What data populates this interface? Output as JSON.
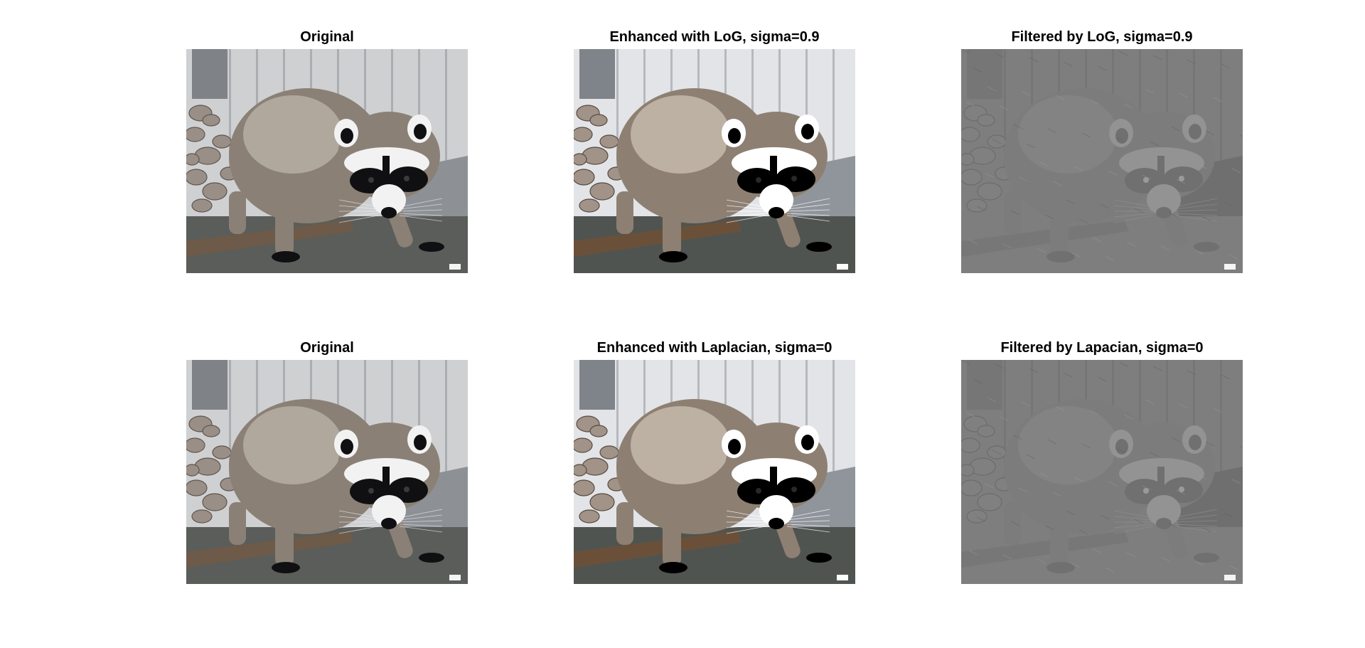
{
  "figure": {
    "panels": [
      {
        "title": "Original",
        "kind": "color"
      },
      {
        "title": "Enhanced with LoG, sigma=0.9",
        "kind": "color-enhanced"
      },
      {
        "title": "Filtered by LoG, sigma=0.9",
        "kind": "gray-filtered"
      },
      {
        "title": "Original",
        "kind": "color"
      },
      {
        "title": "Enhanced with Laplacian, sigma=0",
        "kind": "color-enhanced"
      },
      {
        "title": "Filtered by Lapacian, sigma=0",
        "kind": "gray-filtered"
      }
    ]
  },
  "colors": {
    "background": "#ffffff",
    "wall": "#cfd0d2",
    "wall_shadow": "#8d9196",
    "pole": "#7f8388",
    "ground": "#5a5d5a",
    "log": "#6e5a48",
    "rocks": "#9a8f86",
    "fur": "#8a8076",
    "fur_light": "#c9c2b8",
    "mask": "#101012",
    "face_white": "#f2f2f2",
    "filtered_gray": "#7e7e7e"
  }
}
